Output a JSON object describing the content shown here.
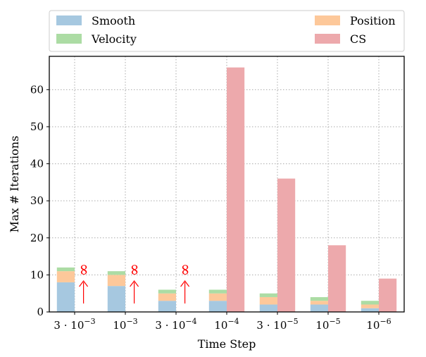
{
  "chart_data": {
    "type": "bar",
    "stacked_series_group": "Smooth + Position + Velocity",
    "categories": [
      {
        "base": "3 · 10",
        "exp": "−3"
      },
      {
        "base": "10",
        "exp": "−3"
      },
      {
        "base": "3 · 10",
        "exp": "−4"
      },
      {
        "base": "10",
        "exp": "−4"
      },
      {
        "base": "3 · 10",
        "exp": "−5"
      },
      {
        "base": "10",
        "exp": "−5"
      },
      {
        "base": "10",
        "exp": "−6"
      }
    ],
    "series": [
      {
        "name": "Smooth",
        "color": "#a6c8e0",
        "values": [
          8,
          7,
          3,
          3,
          2,
          2,
          1
        ]
      },
      {
        "name": "Position",
        "color": "#fdc89a",
        "values": [
          3,
          3,
          2,
          2,
          2,
          1,
          1
        ]
      },
      {
        "name": "Velocity",
        "color": "#acdca4",
        "values": [
          1,
          1,
          1,
          1,
          1,
          1,
          1
        ]
      },
      {
        "name": "CS",
        "color": "#eda9ac",
        "values": [
          null,
          null,
          null,
          66,
          36,
          18,
          9
        ]
      }
    ],
    "annotations": [
      {
        "category_index": 0,
        "text": "∞",
        "arrow": true,
        "color": "#ff0000"
      },
      {
        "category_index": 1,
        "text": "∞",
        "arrow": true,
        "color": "#ff0000"
      },
      {
        "category_index": 2,
        "text": "∞",
        "arrow": true,
        "color": "#ff0000"
      }
    ],
    "xlabel": "Time Step",
    "ylabel": "Max # Iterations",
    "ylim": [
      0,
      69
    ],
    "yticks": [
      0,
      10,
      20,
      30,
      40,
      50,
      60
    ],
    "grid": true,
    "legend": {
      "placement": "top",
      "columns": 2,
      "order": [
        "Smooth",
        "Velocity",
        "Position",
        "CS"
      ]
    }
  }
}
